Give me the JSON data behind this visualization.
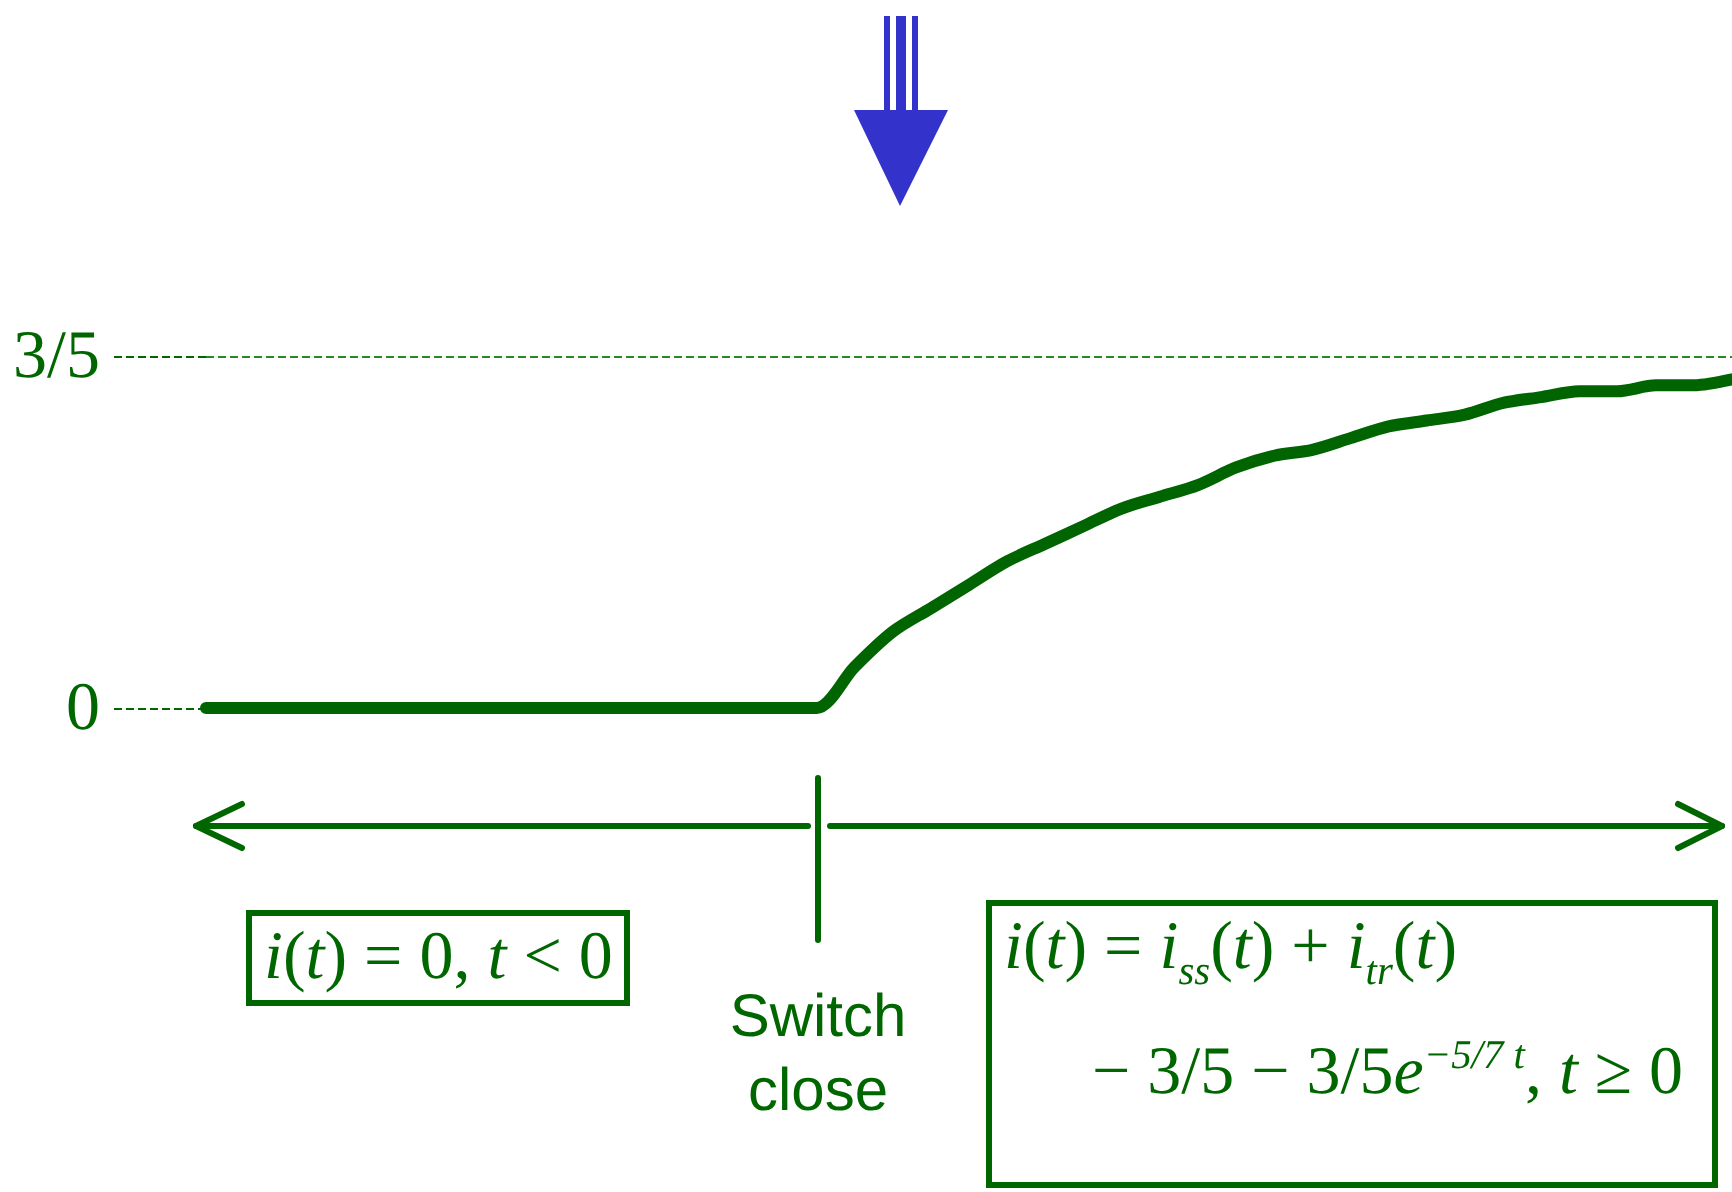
{
  "chart_data": {
    "type": "line",
    "categories": [
      null,
      null,
      null,
      null,
      null,
      null,
      null,
      null,
      null,
      null,
      null,
      null,
      null,
      null,
      null,
      null,
      null,
      null,
      null,
      null,
      null,
      null,
      null,
      null,
      null,
      null,
      null,
      null,
      null,
      null,
      null,
      null,
      null,
      null,
      null,
      null,
      null,
      null,
      null,
      null,
      null
    ],
    "values": [
      0,
      0,
      0,
      0,
      0,
      0,
      0,
      0,
      0,
      0,
      0,
      0,
      0,
      0,
      0,
      0,
      0,
      0.07,
      0.13,
      0.17,
      0.21,
      0.25,
      0.28,
      0.31,
      0.34,
      0.36,
      0.38,
      0.41,
      0.43,
      0.44,
      0.46,
      0.48,
      0.49,
      0.5,
      0.52,
      0.53,
      0.54,
      0.54,
      0.55,
      0.55,
      0.56
    ],
    "color": "#006400",
    "ylim": [
      0,
      0.6
    ],
    "yticks": [
      0,
      {
        "value": 0.6,
        "label": "3/5"
      }
    ],
    "ref_lines": [
      {
        "axis": "y",
        "value": 0.6,
        "color": "#228b22",
        "line_style": "dashed"
      }
    ],
    "tick_labels": "y",
    "marker": "none",
    "line_style": "solid",
    "annotations": [
      "i(t) = 0, t < 0",
      "Switch close",
      "i(t) = i$_{ss}$(t) + i$_{tr}$(t)\n− 3/5 − 3/5e$^{−5/7 t}$, t ≥ 0"
    ]
  }
}
